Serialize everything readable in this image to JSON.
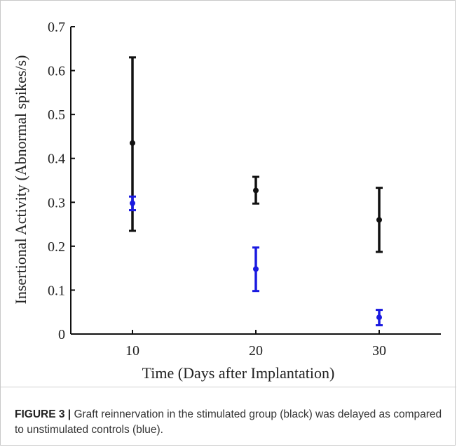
{
  "figure": {
    "caption_label": "FIGURE 3 |",
    "caption_text": " Graft reinnervation in the stimulated group (black) was delayed as compared to unstimulated controls (blue)."
  },
  "colors": {
    "stimulated": "#111111",
    "control": "#1a1ae0",
    "axis": "#111111"
  },
  "chart_data": {
    "type": "scatter",
    "title": "",
    "xlabel": "Time (Days after Implantation)",
    "ylabel": "Insertional Activity (Abnormal spikes/s)",
    "xlim": [
      5,
      35
    ],
    "ylim": [
      0,
      0.7
    ],
    "xticks": [
      10,
      20,
      30
    ],
    "yticks": [
      0,
      0.1,
      0.2,
      0.3,
      0.4,
      0.5,
      0.6,
      0.7
    ],
    "ytick_labels": [
      "0",
      "0.1",
      "0.2",
      "0.3",
      "0.4",
      "0.5",
      "0.6",
      "0.7"
    ],
    "grid": false,
    "series": [
      {
        "key": "stimulated",
        "color": "#111111",
        "x": [
          10,
          20,
          30
        ],
        "y": [
          0.435,
          0.327,
          0.26
        ],
        "err_low": [
          0.235,
          0.297,
          0.187
        ],
        "err_high": [
          0.63,
          0.358,
          0.333
        ]
      },
      {
        "key": "control",
        "color": "#1a1ae0",
        "x": [
          10,
          20,
          30
        ],
        "y": [
          0.298,
          0.148,
          0.038
        ],
        "err_low": [
          0.282,
          0.098,
          0.02
        ],
        "err_high": [
          0.313,
          0.197,
          0.055
        ]
      }
    ]
  }
}
